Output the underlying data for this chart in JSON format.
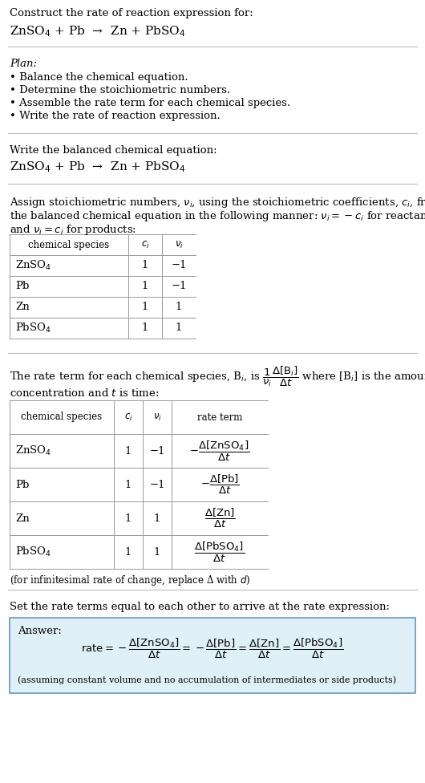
{
  "bg_color": "#ffffff",
  "text_color": "#000000",
  "table_border": "#999999",
  "answer_bg": "#dff0f8",
  "answer_border": "#6699bb",
  "section1_title": "Construct the rate of reaction expression for:",
  "section1_eq": "ZnSO$_4$ + Pb  →  Zn + PbSO$_4$",
  "section2_title": "Plan:",
  "section2_bullets": [
    "• Balance the chemical equation.",
    "• Determine the stoichiometric numbers.",
    "• Assemble the rate term for each chemical species.",
    "• Write the rate of reaction expression."
  ],
  "section3_title": "Write the balanced chemical equation:",
  "section3_eq": "ZnSO$_4$ + Pb  →  Zn + PbSO$_4$",
  "section4_intro_line1": "Assign stoichiometric numbers, $\\nu_i$, using the stoichiometric coefficients, $c_i$, from",
  "section4_intro_line2": "the balanced chemical equation in the following manner: $\\nu_i = -c_i$ for reactants",
  "section4_intro_line3": "and $\\nu_i = c_i$ for products:",
  "table1_headers": [
    "chemical species",
    "$c_i$",
    "$\\nu_i$"
  ],
  "table1_rows": [
    [
      "ZnSO$_4$",
      "1",
      "−1"
    ],
    [
      "Pb",
      "1",
      "−1"
    ],
    [
      "Zn",
      "1",
      "1"
    ],
    [
      "PbSO$_4$",
      "1",
      "1"
    ]
  ],
  "section5_intro_line1": "The rate term for each chemical species, B$_i$, is $\\dfrac{1}{\\nu_i}\\dfrac{\\Delta[\\mathrm{B}_i]}{\\Delta t}$ where [B$_i$] is the amount",
  "section5_intro_line2": "concentration and $t$ is time:",
  "table2_headers": [
    "chemical species",
    "$c_i$",
    "$\\nu_i$",
    "rate term"
  ],
  "table2_rows": [
    [
      "ZnSO$_4$",
      "1",
      "−1",
      "$-\\dfrac{\\Delta[\\mathrm{ZnSO_4}]}{\\Delta t}$"
    ],
    [
      "Pb",
      "1",
      "−1",
      "$-\\dfrac{\\Delta[\\mathrm{Pb}]}{\\Delta t}$"
    ],
    [
      "Zn",
      "1",
      "1",
      "$\\dfrac{\\Delta[\\mathrm{Zn}]}{\\Delta t}$"
    ],
    [
      "PbSO$_4$",
      "1",
      "1",
      "$\\dfrac{\\Delta[\\mathrm{PbSO_4}]}{\\Delta t}$"
    ]
  ],
  "infinitesimal_note": "(for infinitesimal rate of change, replace Δ with $d$)",
  "section6_intro": "Set the rate terms equal to each other to arrive at the rate expression:",
  "answer_label": "Answer:",
  "answer_eq": "$\\mathrm{rate} = -\\dfrac{\\Delta[\\mathrm{ZnSO_4}]}{\\Delta t} = -\\dfrac{\\Delta[\\mathrm{Pb}]}{\\Delta t} = \\dfrac{\\Delta[\\mathrm{Zn}]}{\\Delta t} = \\dfrac{\\Delta[\\mathrm{PbSO_4}]}{\\Delta t}$",
  "answer_note": "(assuming constant volume and no accumulation of intermediates or side products)"
}
